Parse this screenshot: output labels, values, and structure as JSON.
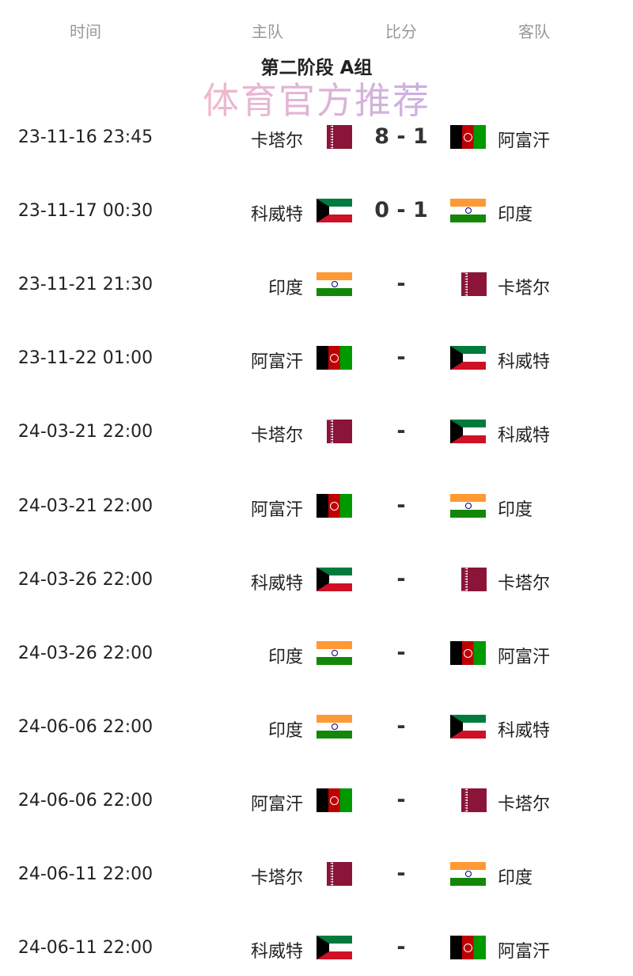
{
  "header": {
    "time": "时间",
    "home": "主队",
    "score": "比分",
    "away": "客队"
  },
  "title": "第二阶段 A组",
  "watermark": "体育官方推荐",
  "colors": {
    "qatar": "#8a1538",
    "afghanistan_red": "#be0000",
    "india_saffron": "#ff9933",
    "kuwait_green": "#007a3d"
  },
  "matches": [
    {
      "date": "23-11-16 23:45",
      "home": "卡塔尔",
      "home_flag": "qatar",
      "score": "8 - 1",
      "away": "阿富汗",
      "away_flag": "afghanistan"
    },
    {
      "date": "23-11-17 00:30",
      "home": "科威特",
      "home_flag": "kuwait",
      "score": "0 - 1",
      "away": "印度",
      "away_flag": "india"
    },
    {
      "date": "23-11-21 21:30",
      "home": "印度",
      "home_flag": "india",
      "score": "-",
      "away": "卡塔尔",
      "away_flag": "qatar"
    },
    {
      "date": "23-11-22 01:00",
      "home": "阿富汗",
      "home_flag": "afghanistan",
      "score": "-",
      "away": "科威特",
      "away_flag": "kuwait"
    },
    {
      "date": "24-03-21 22:00",
      "home": "卡塔尔",
      "home_flag": "qatar",
      "score": "-",
      "away": "科威特",
      "away_flag": "kuwait"
    },
    {
      "date": "24-03-21 22:00",
      "home": "阿富汗",
      "home_flag": "afghanistan",
      "score": "-",
      "away": "印度",
      "away_flag": "india"
    },
    {
      "date": "24-03-26 22:00",
      "home": "科威特",
      "home_flag": "kuwait",
      "score": "-",
      "away": "卡塔尔",
      "away_flag": "qatar"
    },
    {
      "date": "24-03-26 22:00",
      "home": "印度",
      "home_flag": "india",
      "score": "-",
      "away": "阿富汗",
      "away_flag": "afghanistan"
    },
    {
      "date": "24-06-06 22:00",
      "home": "印度",
      "home_flag": "india",
      "score": "-",
      "away": "科威特",
      "away_flag": "kuwait"
    },
    {
      "date": "24-06-06 22:00",
      "home": "阿富汗",
      "home_flag": "afghanistan",
      "score": "-",
      "away": "卡塔尔",
      "away_flag": "qatar"
    },
    {
      "date": "24-06-11 22:00",
      "home": "卡塔尔",
      "home_flag": "qatar",
      "score": "-",
      "away": "印度",
      "away_flag": "india"
    },
    {
      "date": "24-06-11 22:00",
      "home": "科威特",
      "home_flag": "kuwait",
      "score": "-",
      "away": "阿富汗",
      "away_flag": "afghanistan"
    }
  ]
}
